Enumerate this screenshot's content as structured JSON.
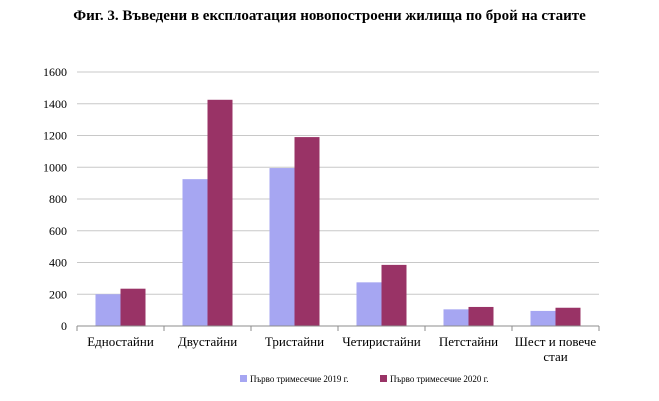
{
  "chart_data": {
    "type": "bar",
    "title": "Фиг. 3. Въведени в експлоатация новопостроени жилища по брой на стаите",
    "xlabel": "",
    "ylabel": "",
    "ylim": [
      0,
      1600
    ],
    "yticks": [
      0,
      200,
      400,
      600,
      800,
      1000,
      1200,
      1400,
      1600
    ],
    "grid": true,
    "legend_position": "bottom",
    "categories": [
      "Едностайни",
      "Двустайни",
      "Тристайни",
      "Четиристайни",
      "Петстайни",
      "Шест и повече стаи"
    ],
    "category_lines": [
      [
        "Едностайни"
      ],
      [
        "Двустайни"
      ],
      [
        "Тристайни"
      ],
      [
        "Четиристайни"
      ],
      [
        "Петстайни"
      ],
      [
        "Шест и повече",
        "стаи"
      ]
    ],
    "series": [
      {
        "name": "Първо тримесечие 2019 г.",
        "color": "#a6a6f2",
        "values": [
          200,
          925,
          995,
          275,
          105,
          95
        ]
      },
      {
        "name": "Първо тримесечие 2020 г.",
        "color": "#993366",
        "values": [
          235,
          1425,
          1190,
          385,
          120,
          115
        ]
      }
    ]
  }
}
